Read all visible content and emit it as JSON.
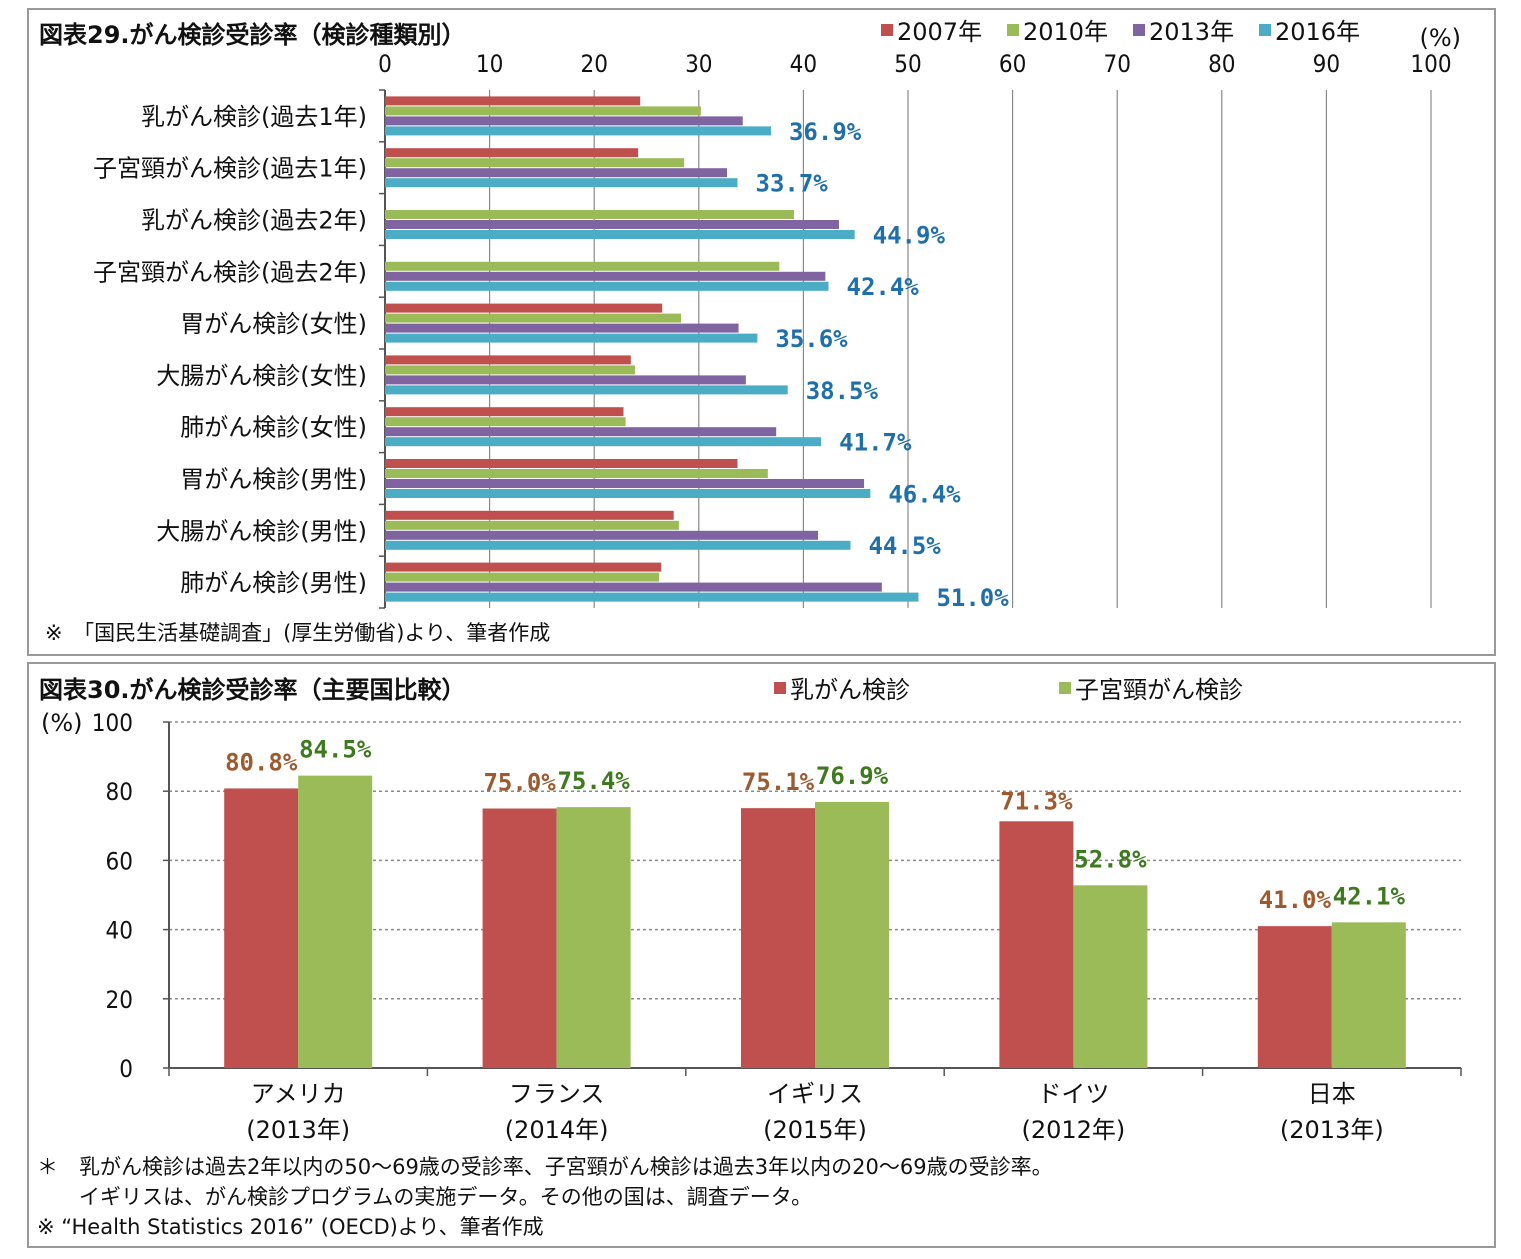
{
  "chart_data": [
    {
      "type": "bar",
      "orientation": "horizontal",
      "title": "図表29.がん検診受診率（検診種類別）",
      "unit_label": "(%)",
      "xlim": [
        0,
        100
      ],
      "ticks": [
        "0",
        "10",
        "20",
        "30",
        "40",
        "50",
        "60",
        "70",
        "80",
        "90",
        "100"
      ],
      "grid": true,
      "legend_position": "top-right",
      "categories": [
        "乳がん検診(過去1年)",
        "子宮頸がん検診(過去1年)",
        "乳がん検診(過去2年)",
        "子宮頸がん検診(過去2年)",
        "胃がん検診(女性)",
        "大腸がん検診(女性)",
        "肺がん検診(女性)",
        "胃がん検診(男性)",
        "大腸がん検診(男性)",
        "肺がん検診(男性)"
      ],
      "series": [
        {
          "name": "2007年",
          "color": "#c0504d",
          "values": [
            24.4,
            24.2,
            null,
            null,
            26.5,
            23.5,
            22.8,
            33.7,
            27.6,
            26.4
          ]
        },
        {
          "name": "2010年",
          "color": "#9bbb59",
          "values": [
            30.2,
            28.6,
            39.1,
            37.7,
            28.3,
            23.9,
            23.0,
            36.6,
            28.1,
            26.2
          ]
        },
        {
          "name": "2013年",
          "color": "#8064a2",
          "values": [
            34.2,
            32.7,
            43.4,
            42.1,
            33.8,
            34.5,
            37.4,
            45.8,
            41.4,
            47.5
          ]
        },
        {
          "name": "2016年",
          "color": "#4bacc6",
          "values": [
            36.9,
            33.7,
            44.9,
            42.4,
            35.6,
            38.5,
            41.7,
            46.4,
            44.5,
            51.0
          ]
        }
      ],
      "data_labels": [
        "36.9%",
        "33.7%",
        "44.9%",
        "42.4%",
        "35.6%",
        "38.5%",
        "41.7%",
        "46.4%",
        "44.5%",
        "51.0%"
      ],
      "footnote": "※　「国民生活基礎調査」(厚生労働省)より、筆者作成"
    },
    {
      "type": "bar",
      "title": "図表30.がん検診受診率（主要国比較）",
      "unit_label": "(%)",
      "ylim": [
        0,
        100
      ],
      "yticks": [
        "0",
        "20",
        "40",
        "60",
        "80",
        "100"
      ],
      "grid": true,
      "legend_position": "top-right",
      "categories": [
        {
          "name": "アメリカ",
          "year": "(2013年)"
        },
        {
          "name": "フランス",
          "year": "(2014年)"
        },
        {
          "name": "イギリス",
          "year": "(2015年)"
        },
        {
          "name": "ドイツ",
          "year": "(2012年)"
        },
        {
          "name": "日本",
          "year": "(2013年)"
        }
      ],
      "series": [
        {
          "name": "乳がん検診",
          "color": "#c0504d",
          "values": [
            80.8,
            75.0,
            75.1,
            71.3,
            41.0
          ],
          "labels": [
            "80.8%",
            "75.0%",
            "75.1%",
            "71.3%",
            "41.0%"
          ]
        },
        {
          "name": "子宮頸がん検診",
          "color": "#9bbb59",
          "values": [
            84.5,
            75.4,
            76.9,
            52.8,
            42.1
          ],
          "labels": [
            "84.5%",
            "75.4%",
            "76.9%",
            "52.8%",
            "42.1%"
          ]
        }
      ],
      "footnotes": [
        "＊　乳がん検診は過去2年以内の50～69歳の受診率、子宮頸がん検診は過去3年以内の20～69歳の受診率。",
        "　　イギリスは、がん検診プログラムの実施データ。その他の国は、調査データ。",
        "※ “Health Statistics 2016” (OECD)より、筆者作成"
      ]
    }
  ]
}
